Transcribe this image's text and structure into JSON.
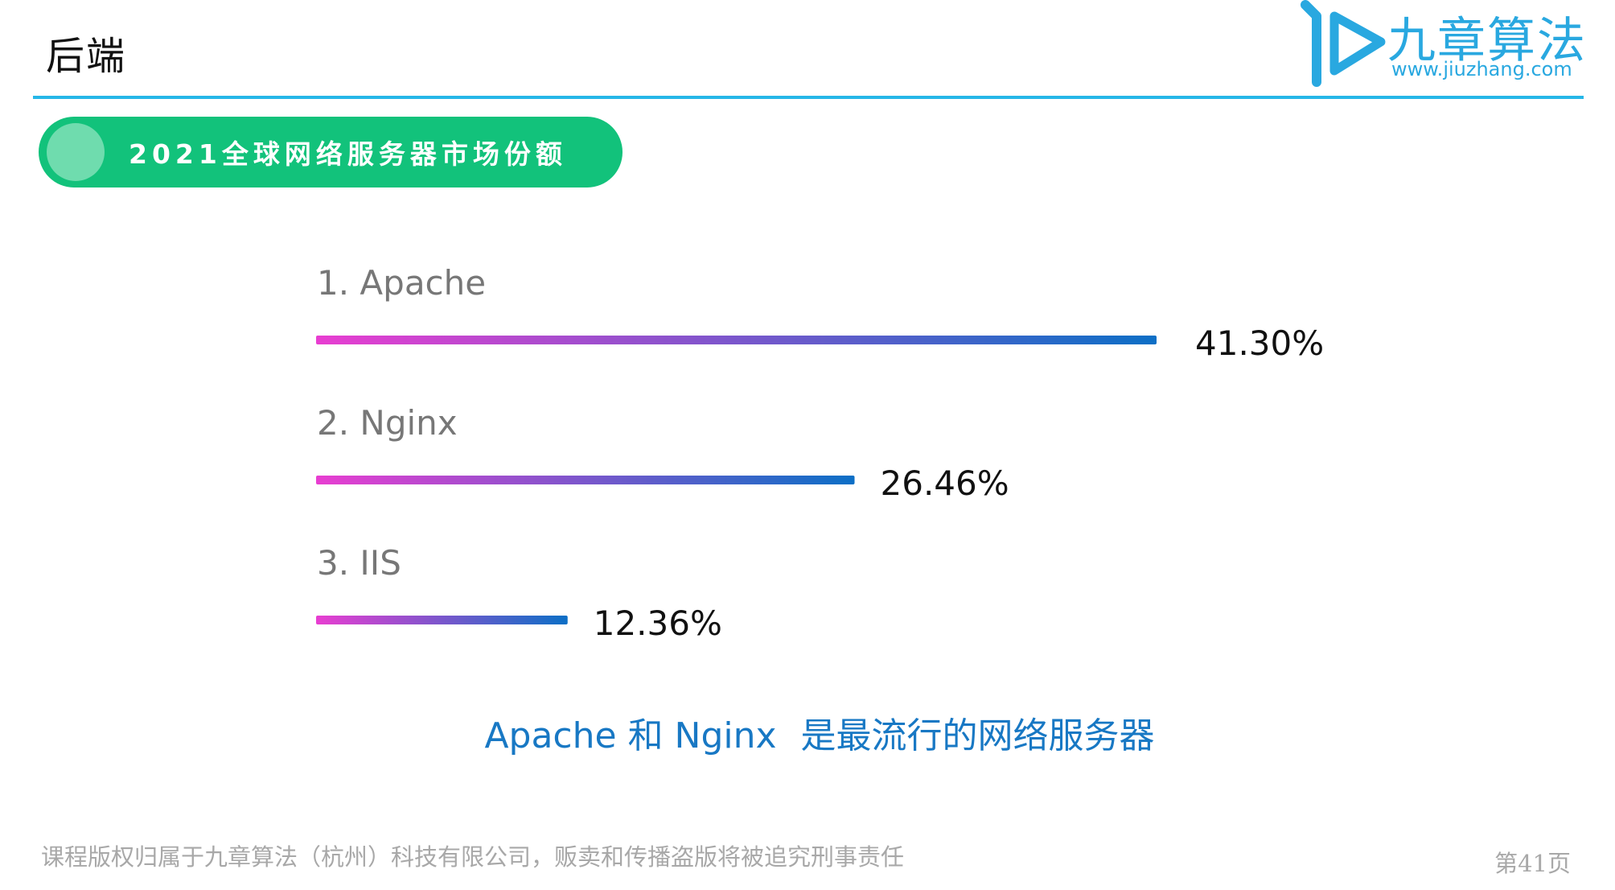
{
  "header": {
    "title": "后端"
  },
  "logo": {
    "name": "九章算法",
    "url": "www.jiuzhang.com",
    "color": "#29a8e0"
  },
  "section": {
    "label": "2021全球网络服务器市场份额"
  },
  "chart_data": {
    "type": "bar",
    "orientation": "horizontal",
    "categories": [
      "1. Apache",
      "2. Nginx",
      "3. IIS"
    ],
    "values": [
      41.3,
      26.46,
      12.36
    ],
    "value_labels": [
      "41.30%",
      "26.46%",
      "12.36%"
    ],
    "unit": "%",
    "title": "2021全球网络服务器市场份额",
    "gradient": [
      "#e83ed1",
      "#0c6fc6"
    ],
    "grid": false,
    "legend": "none"
  },
  "conclusion": {
    "part1": "Apache 和 Nginx",
    "part2": "是最流行的网络服务器"
  },
  "footer": {
    "copyright": "课程版权归属于九章算法（杭州）科技有限公司，贩卖和传播盗版将被追究刑事责任",
    "page": "第41页"
  }
}
